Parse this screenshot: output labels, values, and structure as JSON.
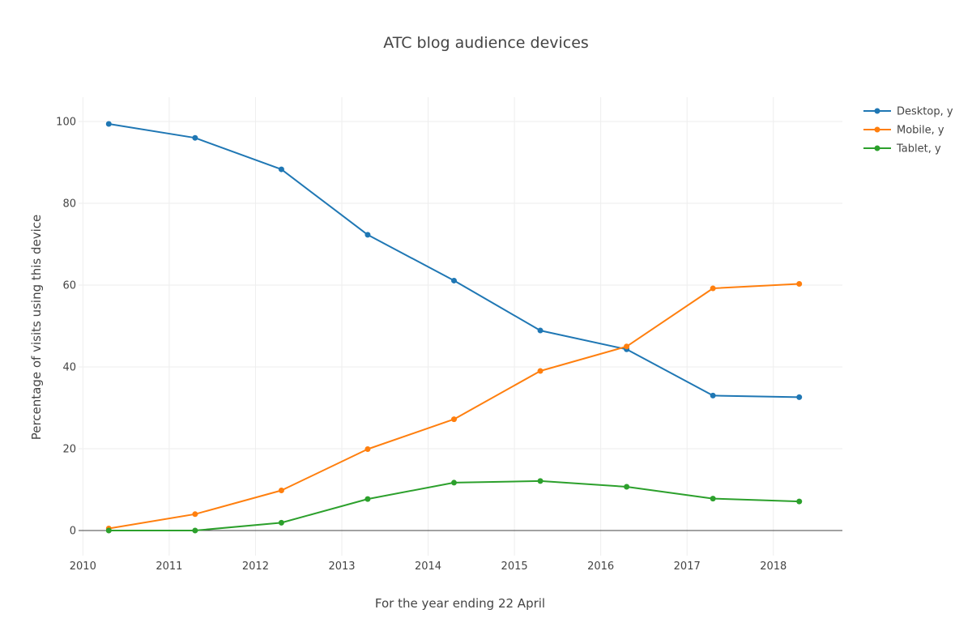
{
  "chart_data": {
    "type": "line",
    "title": "ATC blog audience devices",
    "xlabel": "For the year ending 22 April",
    "ylabel": "Percentage of visits using this device",
    "x": [
      2010.3,
      2011.3,
      2012.3,
      2013.3,
      2014.3,
      2015.3,
      2016.3,
      2017.3,
      2018.3
    ],
    "xlim": [
      2009.95,
      2018.8
    ],
    "ylim": [
      -6,
      106
    ],
    "x_ticks": [
      "2010",
      "2011",
      "2012",
      "2013",
      "2014",
      "2015",
      "2016",
      "2017",
      "2018"
    ],
    "y_ticks": [
      "0",
      "20",
      "40",
      "60",
      "80",
      "100"
    ],
    "grid": true,
    "legend_position": "top-right",
    "series": [
      {
        "name": "Desktop, y",
        "color": "#1f77b4",
        "values": [
          99.4,
          96.0,
          88.3,
          72.3,
          61.1,
          48.9,
          44.3,
          33.0,
          32.6
        ]
      },
      {
        "name": "Mobile, y",
        "color": "#ff7f0e",
        "values": [
          0.5,
          4.0,
          9.8,
          19.9,
          27.2,
          39.0,
          45.0,
          59.2,
          60.3
        ]
      },
      {
        "name": "Tablet, y",
        "color": "#2ca02c",
        "values": [
          0.0,
          0.0,
          1.9,
          7.7,
          11.7,
          12.1,
          10.7,
          7.8,
          7.1
        ]
      }
    ]
  }
}
